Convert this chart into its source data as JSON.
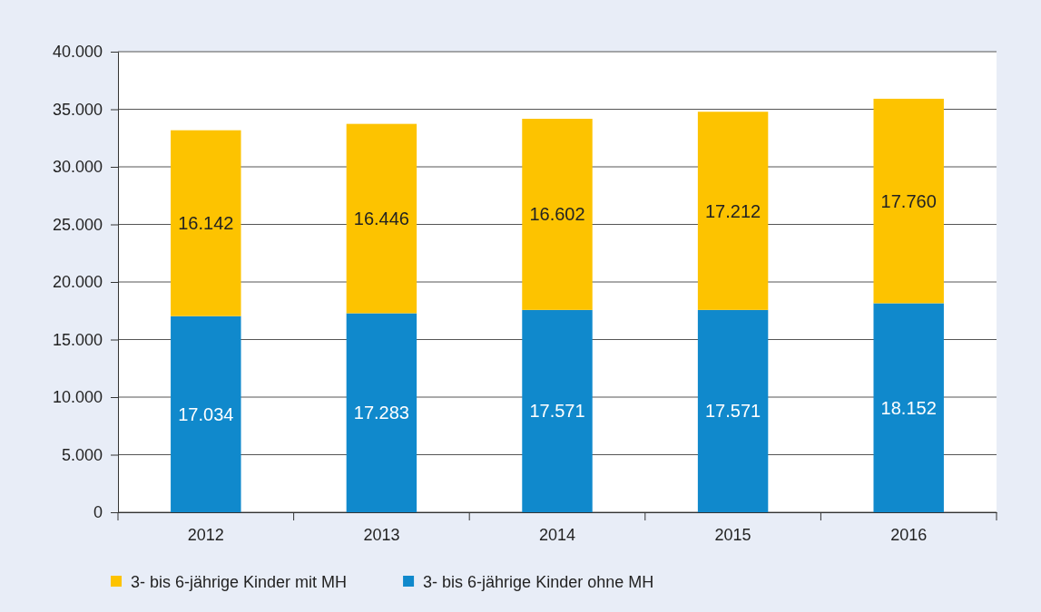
{
  "chart_data": {
    "type": "bar",
    "stacked": true,
    "categories": [
      "2012",
      "2013",
      "2014",
      "2015",
      "2016"
    ],
    "series": [
      {
        "name": "3- bis 6-jährige Kinder ohne MH",
        "color": "#1089cc",
        "values": [
          17034,
          17283,
          17571,
          17571,
          18152
        ],
        "value_labels": [
          "17.034",
          "17.283",
          "17.571",
          "17.571",
          "18.152"
        ]
      },
      {
        "name": "3- bis 6-jährige Kinder mit MH",
        "color": "#fdc300",
        "values": [
          16142,
          16446,
          16602,
          17212,
          17760
        ],
        "value_labels": [
          "16.142",
          "16.446",
          "16.602",
          "17.212",
          "17.760"
        ]
      }
    ],
    "ylim": [
      0,
      40000
    ],
    "yticks": [
      {
        "value": 0,
        "label": "0"
      },
      {
        "value": 5000,
        "label": "5.000"
      },
      {
        "value": 10000,
        "label": "10.000"
      },
      {
        "value": 15000,
        "label": "15.000"
      },
      {
        "value": 20000,
        "label": "20.000"
      },
      {
        "value": 25000,
        "label": "25.000"
      },
      {
        "value": 30000,
        "label": "30.000"
      },
      {
        "value": 35000,
        "label": "35.000"
      },
      {
        "value": 40000,
        "label": "40.000"
      }
    ],
    "grid": "y",
    "legend": "bottom left"
  }
}
